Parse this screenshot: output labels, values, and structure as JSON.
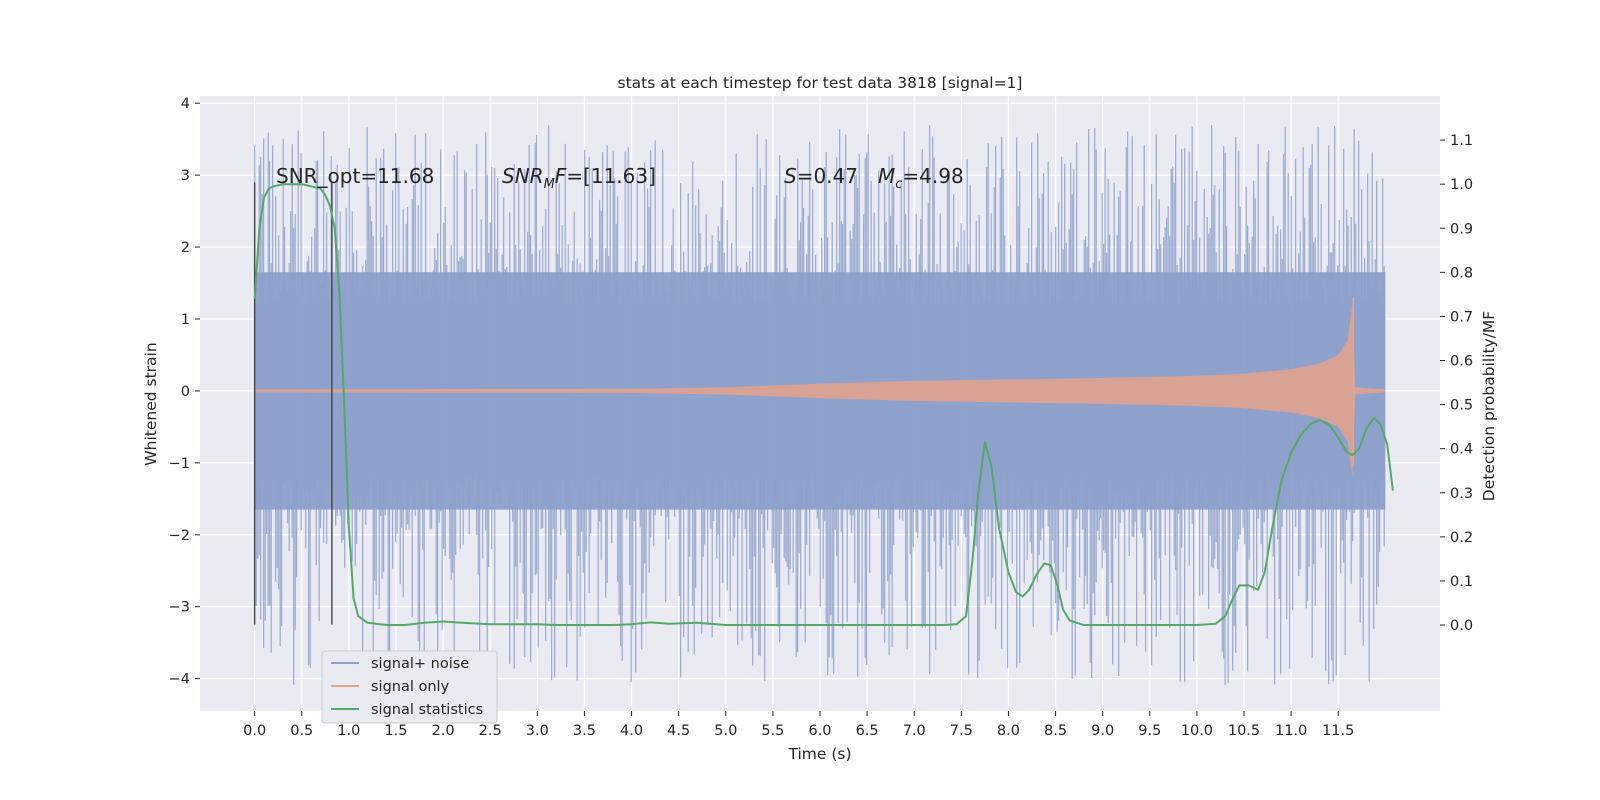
{
  "chart_data": {
    "type": "line",
    "title": "stats at each timestep for test data 3818 [signal=1]",
    "xlabel": "Time (s)",
    "ylabel": "Whitened strain",
    "ylabel_right": "Detection probability/MF",
    "xlim": [
      -0.58,
      12.58
    ],
    "ylim": [
      -4.45,
      4.1
    ],
    "ylim_right": [
      -0.195,
      1.2
    ],
    "x_ticks": [
      "0.0",
      "0.5",
      "1.0",
      "1.5",
      "2.0",
      "2.5",
      "3.0",
      "3.5",
      "4.0",
      "4.5",
      "5.0",
      "5.5",
      "6.0",
      "6.5",
      "7.0",
      "7.5",
      "8.0",
      "8.5",
      "9.0",
      "9.5",
      "10.0",
      "10.5",
      "11.0",
      "11.5"
    ],
    "y_ticks": [
      "4",
      "3",
      "2",
      "1",
      "0",
      "−1",
      "−2",
      "−3",
      "−4"
    ],
    "y_right_ticks": [
      "1.1",
      "1.0",
      "0.9",
      "0.8",
      "0.7",
      "0.6",
      "0.5",
      "0.4",
      "0.3",
      "0.2",
      "0.1",
      "0.0"
    ],
    "grid": true,
    "legend_position": "lower-left",
    "annotations": {
      "snr_opt": "SNR_opt=11.68",
      "snr_mf_main": "SNR",
      "snr_mf_sub": "M",
      "snr_mf_f": "F",
      "snr_mf_value": "=[11.63]",
      "s_symbol": "S",
      "s_value": "=0.47",
      "mc_symbol": "M",
      "mc_sub": "c",
      "mc_value": "=4.98"
    },
    "series": [
      {
        "name": "signal+ noise",
        "color": "#8da0cb",
        "t_start": 0.0,
        "t_end": 12.0,
        "core_amplitude": 1.65,
        "peak_amplitude_max": 3.7,
        "min_amplitude": -4.1
      },
      {
        "name": "signal only",
        "color": "#e5a38a",
        "envelope": [
          {
            "t": 0.0,
            "amp": 0.02
          },
          {
            "t": 4.0,
            "amp": 0.03
          },
          {
            "t": 5.0,
            "amp": 0.05
          },
          {
            "t": 6.0,
            "amp": 0.1
          },
          {
            "t": 7.0,
            "amp": 0.14
          },
          {
            "t": 8.0,
            "amp": 0.16
          },
          {
            "t": 9.0,
            "amp": 0.18
          },
          {
            "t": 10.0,
            "amp": 0.21
          },
          {
            "t": 10.5,
            "amp": 0.24
          },
          {
            "t": 11.0,
            "amp": 0.3
          },
          {
            "t": 11.3,
            "amp": 0.38
          },
          {
            "t": 11.5,
            "amp": 0.5
          },
          {
            "t": 11.6,
            "amp": 0.7
          },
          {
            "t": 11.65,
            "amp": 1.2
          },
          {
            "t": 11.68,
            "amp": 0.05
          },
          {
            "t": 12.0,
            "amp": 0.02
          }
        ]
      },
      {
        "name": "signal statistics",
        "color": "#55a868",
        "axis": "right",
        "points": [
          [
            0.0,
            0.74
          ],
          [
            0.05,
            0.9
          ],
          [
            0.1,
            0.97
          ],
          [
            0.15,
            0.99
          ],
          [
            0.2,
            0.995
          ],
          [
            0.3,
            1.0
          ],
          [
            0.4,
            1.0
          ],
          [
            0.5,
            1.0
          ],
          [
            0.6,
            0.995
          ],
          [
            0.7,
            0.99
          ],
          [
            0.75,
            0.975
          ],
          [
            0.8,
            0.95
          ],
          [
            0.85,
            0.9
          ],
          [
            0.9,
            0.75
          ],
          [
            0.95,
            0.5
          ],
          [
            1.0,
            0.22
          ],
          [
            1.05,
            0.06
          ],
          [
            1.1,
            0.02
          ],
          [
            1.2,
            0.005
          ],
          [
            1.4,
            0.0
          ],
          [
            1.6,
            0.0
          ],
          [
            1.8,
            0.005
          ],
          [
            2.0,
            0.008
          ],
          [
            2.2,
            0.005
          ],
          [
            2.5,
            0.002
          ],
          [
            3.0,
            0.002
          ],
          [
            3.2,
            0.0
          ],
          [
            3.5,
            0.0
          ],
          [
            3.8,
            0.0
          ],
          [
            4.0,
            0.002
          ],
          [
            4.2,
            0.006
          ],
          [
            4.4,
            0.003
          ],
          [
            4.7,
            0.005
          ],
          [
            5.0,
            0.0
          ],
          [
            5.5,
            0.0
          ],
          [
            6.0,
            0.0
          ],
          [
            6.5,
            0.0
          ],
          [
            7.0,
            0.0
          ],
          [
            7.3,
            0.0
          ],
          [
            7.45,
            0.002
          ],
          [
            7.55,
            0.02
          ],
          [
            7.62,
            0.15
          ],
          [
            7.68,
            0.3
          ],
          [
            7.75,
            0.415
          ],
          [
            7.82,
            0.36
          ],
          [
            7.9,
            0.22
          ],
          [
            8.0,
            0.12
          ],
          [
            8.08,
            0.075
          ],
          [
            8.15,
            0.065
          ],
          [
            8.22,
            0.08
          ],
          [
            8.3,
            0.115
          ],
          [
            8.38,
            0.14
          ],
          [
            8.45,
            0.135
          ],
          [
            8.52,
            0.09
          ],
          [
            8.58,
            0.035
          ],
          [
            8.65,
            0.01
          ],
          [
            8.8,
            0.0
          ],
          [
            9.0,
            0.0
          ],
          [
            9.5,
            0.0
          ],
          [
            10.0,
            0.0
          ],
          [
            10.2,
            0.003
          ],
          [
            10.3,
            0.02
          ],
          [
            10.38,
            0.06
          ],
          [
            10.45,
            0.09
          ],
          [
            10.55,
            0.09
          ],
          [
            10.65,
            0.08
          ],
          [
            10.72,
            0.12
          ],
          [
            10.8,
            0.22
          ],
          [
            10.9,
            0.33
          ],
          [
            11.0,
            0.39
          ],
          [
            11.1,
            0.43
          ],
          [
            11.2,
            0.455
          ],
          [
            11.3,
            0.465
          ],
          [
            11.4,
            0.455
          ],
          [
            11.5,
            0.425
          ],
          [
            11.58,
            0.395
          ],
          [
            11.65,
            0.385
          ],
          [
            11.72,
            0.4
          ],
          [
            11.8,
            0.445
          ],
          [
            11.88,
            0.47
          ],
          [
            11.95,
            0.455
          ],
          [
            12.02,
            0.41
          ],
          [
            12.08,
            0.305
          ]
        ]
      }
    ],
    "vertical_markers": [
      0.0,
      0.82
    ]
  }
}
